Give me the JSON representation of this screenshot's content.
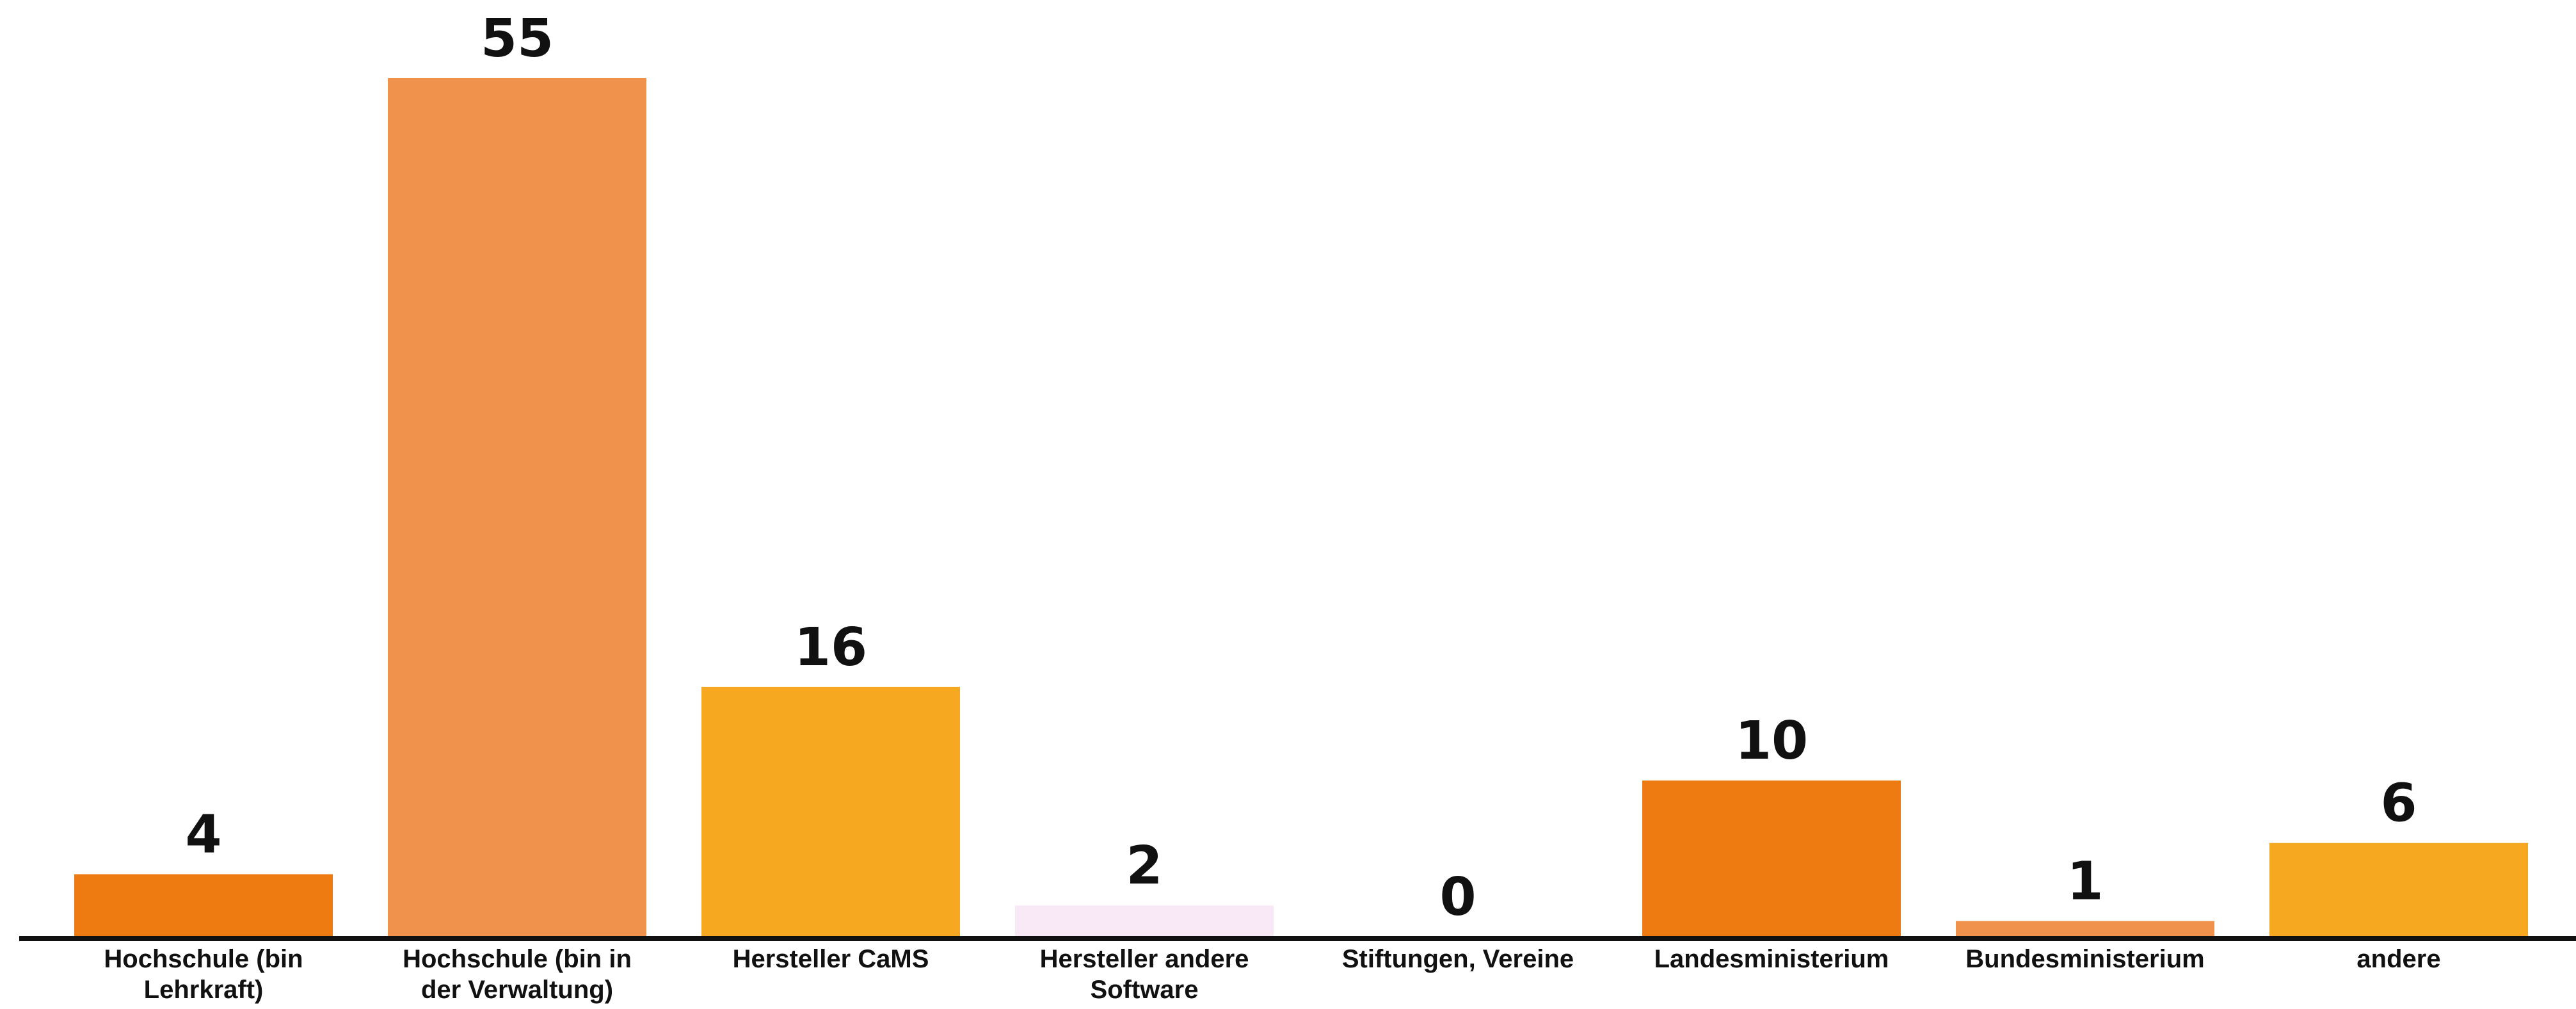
{
  "chart_data": {
    "type": "bar",
    "title": "",
    "xlabel": "",
    "ylabel": "",
    "ylim": [
      0,
      55
    ],
    "grid": false,
    "categories": [
      [
        "Hochschule (bin",
        "Lehrkraft)"
      ],
      [
        "Hochschule (bin in",
        "der Verwaltung)"
      ],
      [
        "Hersteller CaMS"
      ],
      [
        "Hersteller andere",
        "Software"
      ],
      [
        "Stiftungen, Vereine"
      ],
      [
        "Landesministerium"
      ],
      [
        "Bundesministerium"
      ],
      [
        "andere"
      ]
    ],
    "values": [
      4,
      55,
      16,
      2,
      0,
      10,
      1,
      6
    ],
    "data_labels": [
      "4",
      "55",
      "16",
      "2",
      "0",
      "10",
      "1",
      "6"
    ],
    "colors": [
      "#ee7a12",
      "#f0924c",
      "#f5a820",
      "#f9e9f6",
      "#ffffff",
      "#ee7a12",
      "#f0924c",
      "#f5a820"
    ],
    "axis_color": "#111111"
  }
}
